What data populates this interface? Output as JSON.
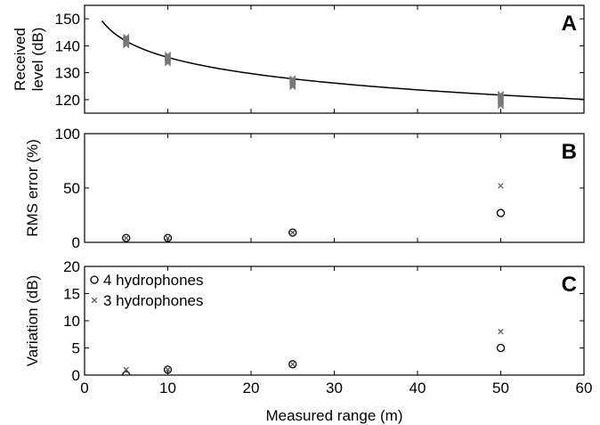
{
  "chart_data": [
    {
      "type": "scatter",
      "panel_label": "A",
      "ylabel_lines": [
        "Received",
        "level (dB)"
      ],
      "xlim": [
        0,
        60
      ],
      "ylim": [
        115,
        155
      ],
      "yticks": [
        120,
        130,
        140,
        150
      ],
      "xticks": [
        0,
        10,
        20,
        30,
        40,
        50,
        60
      ],
      "show_xtick_labels": false,
      "series": [
        {
          "marker": "x-cluster",
          "color": "#777777",
          "points": [
            [
              5,
              140.3
            ],
            [
              5,
              140.8
            ],
            [
              5,
              141.2
            ],
            [
              5,
              141.6
            ],
            [
              5,
              142.0
            ],
            [
              5,
              142.4
            ],
            [
              5,
              142.8
            ],
            [
              5,
              143.2
            ],
            [
              10,
              133.6
            ],
            [
              10,
              134.1
            ],
            [
              10,
              134.6
            ],
            [
              10,
              135.1
            ],
            [
              10,
              135.6
            ],
            [
              10,
              136.1
            ],
            [
              10,
              136.6
            ],
            [
              25,
              124.8
            ],
            [
              25,
              125.3
            ],
            [
              25,
              125.8
            ],
            [
              25,
              126.3
            ],
            [
              25,
              126.8
            ],
            [
              25,
              127.3
            ],
            [
              25,
              127.8
            ],
            [
              50,
              117.8
            ],
            [
              50,
              118.4
            ],
            [
              50,
              119.0
            ],
            [
              50,
              119.6
            ],
            [
              50,
              120.2
            ],
            [
              50,
              120.8
            ],
            [
              50,
              121.4
            ],
            [
              50,
              122.0
            ]
          ]
        }
      ],
      "curve": {
        "model": "spherical-spreading",
        "source_level_db": 155.7,
        "x_range": [
          2.1,
          60
        ]
      }
    },
    {
      "type": "scatter",
      "panel_label": "B",
      "ylabel": "RMS error (%)",
      "xlim": [
        0,
        60
      ],
      "ylim": [
        0,
        100
      ],
      "yticks": [
        0,
        50,
        100
      ],
      "xticks": [
        0,
        10,
        20,
        30,
        40,
        50,
        60
      ],
      "show_xtick_labels": false,
      "series": [
        {
          "marker": "circle",
          "x": [
            5,
            10,
            25,
            50
          ],
          "y": [
            4,
            4,
            9,
            27
          ]
        },
        {
          "marker": "x",
          "x": [
            5,
            10,
            25,
            50
          ],
          "y": [
            4,
            4,
            9,
            52
          ]
        }
      ]
    },
    {
      "type": "scatter",
      "panel_label": "C",
      "ylabel": "Variation (dB)",
      "xlabel": "Measured range (m)",
      "xlim": [
        0,
        60
      ],
      "ylim": [
        0,
        20
      ],
      "yticks": [
        0,
        5,
        10,
        15,
        20
      ],
      "xticks": [
        0,
        10,
        20,
        30,
        40,
        50,
        60
      ],
      "show_xtick_labels": true,
      "legend_position": "top-left",
      "series": [
        {
          "name": "4 hydrophones",
          "marker": "circle",
          "x": [
            5,
            10,
            25,
            50
          ],
          "y": [
            0,
            1,
            2,
            5
          ]
        },
        {
          "name": "3 hydrophones",
          "marker": "x",
          "x": [
            5,
            10,
            25,
            50
          ],
          "y": [
            1,
            1,
            2,
            8
          ]
        }
      ]
    }
  ]
}
